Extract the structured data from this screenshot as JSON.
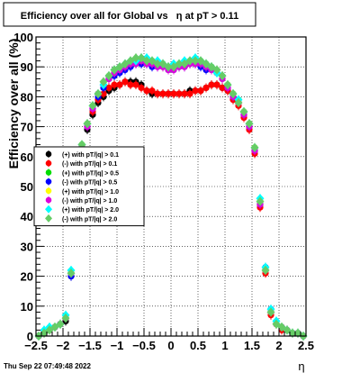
{
  "chart_data": {
    "type": "scatter",
    "title": "Efficiency over all for Global vs   η at pT > 0.11",
    "xlabel": "η",
    "ylabel": "Efficiency over all (%)",
    "xlim": [
      -2.5,
      2.5
    ],
    "ylim": [
      0,
      100
    ],
    "x_ticks": [
      "−2.5",
      "−2",
      "−1.5",
      "−1",
      "−0.5",
      "0",
      "0.5",
      "1",
      "1.5",
      "2",
      "2.5"
    ],
    "y_ticks": [
      "0",
      "10",
      "20",
      "30",
      "40",
      "50",
      "60",
      "70",
      "80",
      "90",
      "100"
    ],
    "grid": true,
    "legend_position": "left",
    "x": [
      -2.45,
      -2.35,
      -2.25,
      -2.15,
      -2.05,
      -1.95,
      -1.85,
      -1.75,
      -1.65,
      -1.55,
      -1.45,
      -1.35,
      -1.25,
      -1.15,
      -1.05,
      -0.95,
      -0.85,
      -0.75,
      -0.65,
      -0.55,
      -0.45,
      -0.35,
      -0.25,
      -0.15,
      -0.05,
      0.05,
      0.15,
      0.25,
      0.35,
      0.45,
      0.55,
      0.65,
      0.75,
      0.85,
      0.95,
      1.05,
      1.15,
      1.25,
      1.35,
      1.45,
      1.55,
      1.65,
      1.75,
      1.85,
      1.95,
      2.05,
      2.15,
      2.25,
      2.35,
      2.45
    ],
    "series": [
      {
        "name": "(+) with pT/|q| > 0.1",
        "color": "#000000",
        "marker": "circle",
        "values": [
          0,
          1,
          2,
          3,
          4,
          5,
          20,
          45,
          62,
          69,
          74,
          78,
          80,
          82,
          83,
          84,
          85,
          85,
          85,
          84,
          82,
          81,
          81,
          81,
          81,
          81,
          81,
          81,
          82,
          82,
          82,
          83,
          84,
          84,
          83,
          82,
          80,
          78,
          74,
          70,
          62,
          44,
          22,
          8,
          4,
          3,
          2,
          1,
          1,
          0
        ]
      },
      {
        "name": "(-) with pT/|q| > 0.1",
        "color": "#ff0000",
        "marker": "circle",
        "values": [
          0,
          1,
          2,
          3,
          4,
          6,
          21,
          46,
          63,
          70,
          75,
          79,
          81,
          83,
          84,
          84,
          85,
          84,
          84,
          83,
          82,
          82,
          81,
          81,
          81,
          81,
          81,
          81,
          81,
          82,
          82,
          83,
          84,
          84,
          83,
          82,
          79,
          77,
          73,
          69,
          61,
          43,
          21,
          7,
          4,
          2,
          2,
          1,
          1,
          0
        ]
      },
      {
        "name": "(+) with pT/|q| > 0.5",
        "color": "#00dd00",
        "marker": "circle",
        "values": [
          0,
          1,
          2,
          3,
          4,
          6,
          21,
          46,
          64,
          71,
          77,
          81,
          84,
          86,
          88,
          89,
          90,
          91,
          91,
          92,
          92,
          92,
          91,
          91,
          90,
          90,
          90,
          91,
          91,
          92,
          92,
          91,
          90,
          88,
          86,
          84,
          81,
          79,
          75,
          71,
          63,
          45,
          22,
          8,
          4,
          3,
          2,
          1,
          1,
          0
        ]
      },
      {
        "name": "(-) with pT/|q| > 0.5",
        "color": "#0000ff",
        "marker": "circle",
        "values": [
          0,
          1,
          2,
          3,
          4,
          6,
          20,
          45,
          63,
          70,
          76,
          80,
          83,
          86,
          87,
          88,
          89,
          90,
          91,
          91,
          91,
          90,
          90,
          90,
          89,
          89,
          90,
          90,
          91,
          91,
          90,
          89,
          89,
          88,
          86,
          83,
          80,
          78,
          74,
          70,
          62,
          44,
          23,
          9,
          4,
          3,
          2,
          1,
          1,
          0
        ]
      },
      {
        "name": "(+) with pT/|q| > 1.0",
        "color": "#ffff00",
        "marker": "circle",
        "values": [
          0,
          1,
          2,
          3,
          4,
          6,
          21,
          46,
          64,
          71,
          77,
          81,
          84,
          87,
          88,
          89,
          90,
          91,
          92,
          92,
          92,
          91,
          91,
          90,
          90,
          90,
          91,
          91,
          92,
          92,
          91,
          90,
          89,
          88,
          86,
          84,
          81,
          78,
          75,
          71,
          63,
          45,
          22,
          8,
          4,
          3,
          2,
          1,
          1,
          0
        ]
      },
      {
        "name": "(-) with pT/|q| > 1.0",
        "color": "#dd00dd",
        "marker": "circle",
        "values": [
          0,
          1,
          2,
          3,
          4,
          6,
          21,
          45,
          63,
          70,
          76,
          81,
          84,
          86,
          88,
          89,
          90,
          91,
          91,
          92,
          91,
          91,
          90,
          90,
          89,
          89,
          90,
          90,
          91,
          91,
          91,
          90,
          89,
          88,
          86,
          83,
          80,
          78,
          74,
          70,
          62,
          44,
          22,
          8,
          4,
          3,
          2,
          1,
          1,
          0
        ]
      },
      {
        "name": "(+) with pT/|q| > 2.0",
        "color": "#00ffff",
        "marker": "diamond",
        "values": [
          0,
          2,
          3,
          3,
          4,
          7,
          22,
          47,
          64,
          71,
          77,
          81,
          84,
          87,
          89,
          90,
          91,
          92,
          92,
          93,
          93,
          92,
          92,
          91,
          90,
          91,
          91,
          92,
          92,
          93,
          92,
          91,
          90,
          88,
          87,
          84,
          81,
          79,
          75,
          71,
          63,
          46,
          23,
          9,
          5,
          3,
          2,
          1,
          1,
          0
        ]
      },
      {
        "name": "(-) with pT/|q| > 2.0",
        "color": "#66cc66",
        "marker": "diamond",
        "values": [
          0,
          1,
          2,
          3,
          4,
          6,
          21,
          46,
          64,
          71,
          77,
          81,
          85,
          87,
          89,
          90,
          91,
          92,
          93,
          93,
          92,
          92,
          91,
          91,
          90,
          90,
          91,
          91,
          92,
          92,
          92,
          91,
          90,
          89,
          87,
          84,
          81,
          78,
          75,
          71,
          63,
          45,
          22,
          8,
          4,
          3,
          2,
          1,
          1,
          0
        ]
      }
    ]
  },
  "footer": {
    "timestamp": "Thu Sep 22 07:49:48 2022"
  }
}
